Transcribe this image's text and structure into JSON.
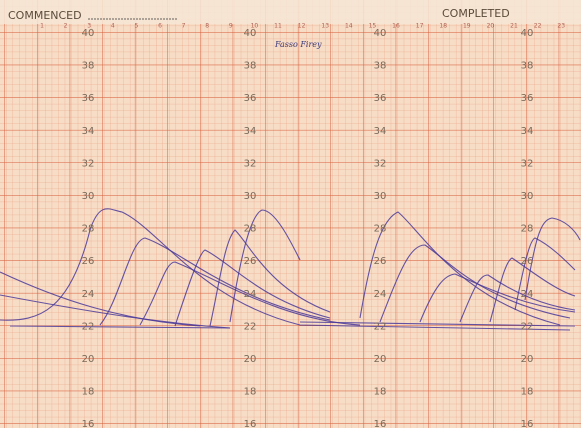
{
  "header": {
    "left": "COMMENCED",
    "right": "COMPLETED"
  },
  "hours": [
    "1",
    "2",
    "3",
    "4",
    "5",
    "6",
    "7",
    "8",
    "9",
    "10",
    "11",
    "12",
    "13",
    "14",
    "15",
    "16",
    "17",
    "18",
    "19",
    "20",
    "21",
    "22",
    "23"
  ],
  "note": "Fasso Firey",
  "scales": [
    {
      "labels": [
        40,
        38,
        36,
        34,
        32,
        30,
        28,
        26,
        24,
        22,
        20,
        18,
        16
      ]
    },
    {
      "labels": [
        40,
        38,
        36,
        34,
        32,
        30,
        28,
        26,
        24,
        22,
        20,
        18,
        16
      ]
    },
    {
      "labels": [
        40,
        38,
        36,
        34,
        32,
        30,
        28,
        26,
        24,
        22,
        20,
        18,
        16
      ]
    },
    {
      "labels": [
        40,
        38,
        36,
        34,
        32,
        30,
        28,
        26,
        24,
        22,
        20,
        18,
        16
      ]
    }
  ]
}
